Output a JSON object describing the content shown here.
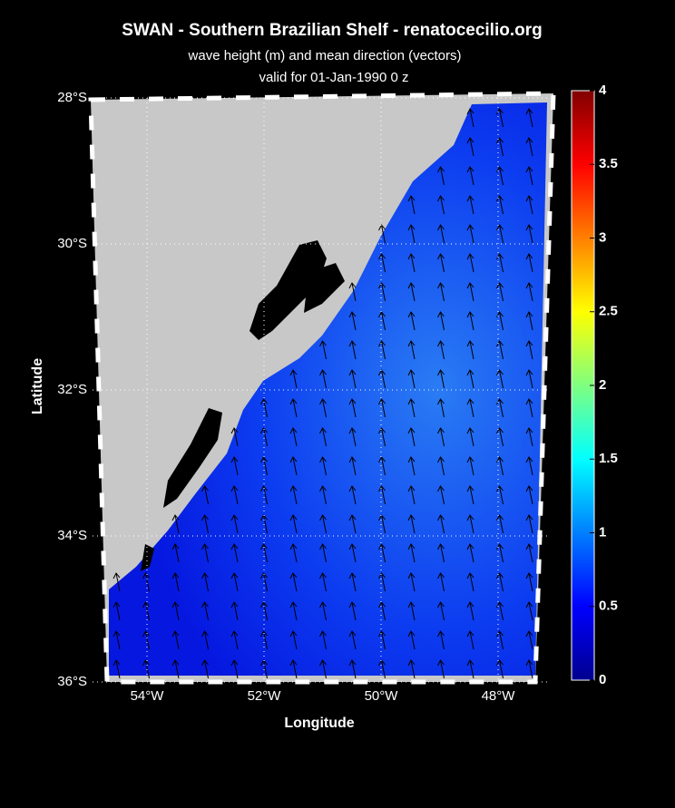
{
  "title": "SWAN - Southern Brazilian Shelf - renatocecilio.org",
  "subtitle": "wave height (m) and mean direction (vectors)",
  "valid": "valid for 01-Jan-1990    0 z",
  "map": {
    "ylabel": "Latitude",
    "xlabel": "Longitude",
    "lat_ticks": [
      {
        "value": 28,
        "label": "28°S"
      },
      {
        "value": 30,
        "label": "30°S"
      },
      {
        "value": 32,
        "label": "32°S"
      },
      {
        "value": 34,
        "label": "34°S"
      },
      {
        "value": 36,
        "label": "36°S"
      }
    ],
    "lon_ticks": [
      {
        "value": 54,
        "label": "54°W"
      },
      {
        "value": 52,
        "label": "52°W"
      },
      {
        "value": 50,
        "label": "50°W"
      },
      {
        "value": 48,
        "label": "48°W"
      }
    ]
  },
  "colorbar": {
    "lim": [
      0,
      4
    ],
    "ticks": [
      0,
      0.5,
      1,
      1.5,
      2,
      2.5,
      3,
      3.5,
      4
    ]
  }
}
